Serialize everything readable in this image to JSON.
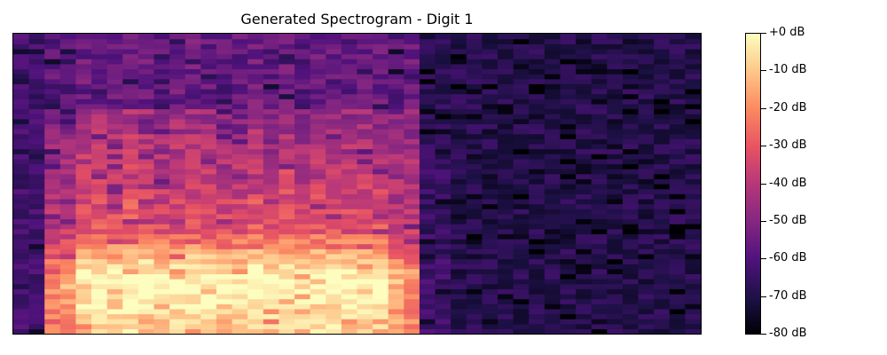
{
  "chart_data": {
    "type": "heatmap",
    "title": "Generated Spectrogram - Digit 1",
    "xlabel": "",
    "ylabel": "",
    "colormap": "magma",
    "colorbar": {
      "range": [
        -80,
        0
      ],
      "ticks": [
        "+0 dB",
        "-10 dB",
        "-20 dB",
        "-30 dB",
        "-40 dB",
        "-50 dB",
        "-60 dB",
        "-70 dB",
        "-80 dB"
      ]
    },
    "grid": false,
    "time_frames": 44,
    "frequency_bins": 60,
    "voiced_region_frames": [
      2,
      25
    ],
    "approx_levels_db": {
      "low_band_voiced": -8,
      "mid_band_voiced": -30,
      "high_band_voiced": -55,
      "silence": -68
    }
  }
}
